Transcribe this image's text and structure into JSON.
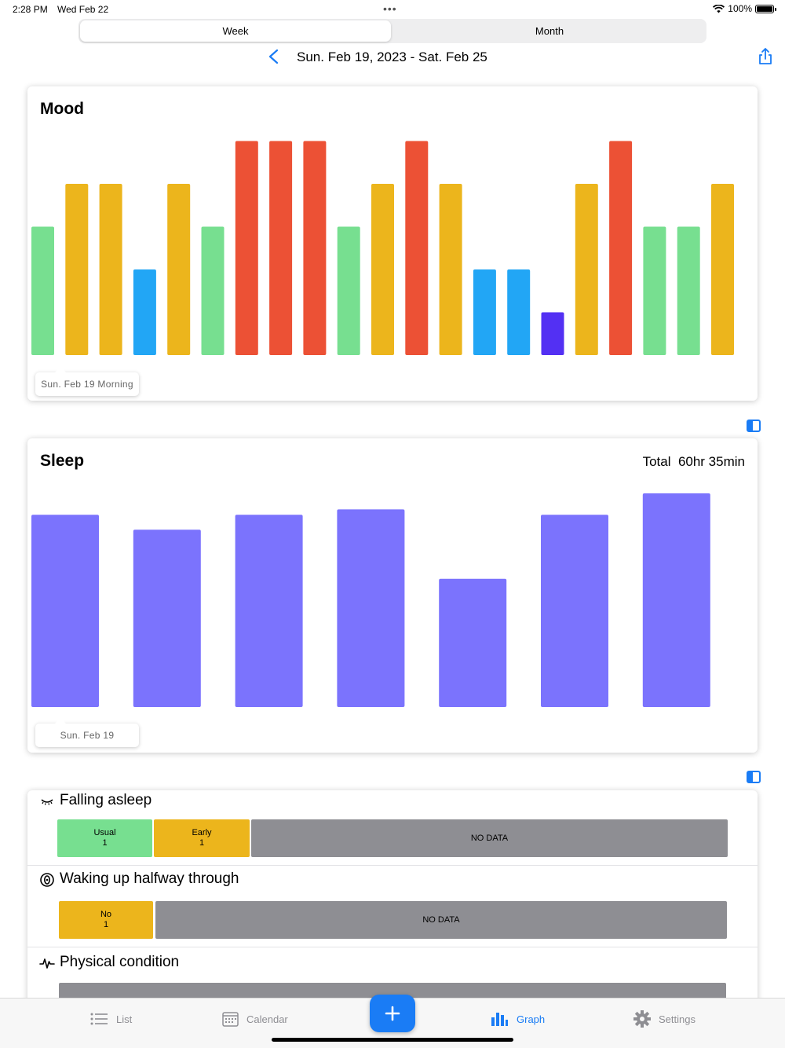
{
  "status_bar": {
    "time": "2:28 PM",
    "date": "Wed Feb 22",
    "battery": "100%"
  },
  "segmented_control": {
    "options": [
      "Week",
      "Month"
    ],
    "selected": "Week"
  },
  "date_nav": {
    "range": "Sun. Feb 19, 2023 - Sat. Feb 25"
  },
  "mood": {
    "title": "Mood",
    "tooltip": "Sun. Feb 19 Morning",
    "colors": {
      "5": "#ec5135",
      "4": "#ecb51c",
      "3": "#77df90",
      "2": "#22a6f5",
      "1": "#5330f3"
    }
  },
  "sleep": {
    "title": "Sleep",
    "total_label": "Total",
    "total_value": "60hr 35min",
    "tooltip": "Sun. Feb 19",
    "color": "#7b73fd"
  },
  "chart_data": [
    {
      "type": "bar",
      "title": "Mood",
      "levels": 5,
      "values": [
        3,
        4,
        4,
        2,
        4,
        3,
        5,
        5,
        5,
        3,
        4,
        5,
        4,
        2,
        2,
        1,
        4,
        5,
        3,
        3,
        4
      ],
      "ylim": [
        0,
        5
      ]
    },
    {
      "type": "bar",
      "title": "Sleep",
      "values": [
        9.0,
        8.3,
        9.0,
        9.25,
        6.0,
        9.0,
        10.0
      ],
      "ylim": [
        0,
        10
      ]
    }
  ],
  "falling_asleep": {
    "title": "Falling asleep",
    "segments": [
      {
        "label": "Usual",
        "count": "1",
        "color": "#77df90"
      },
      {
        "label": "Early",
        "count": "1",
        "color": "#ecb51c"
      },
      {
        "label": "NO DATA",
        "count": "",
        "color": "#8e8e93"
      }
    ]
  },
  "waking_up": {
    "title": "Waking up halfway through",
    "segments": [
      {
        "label": "No",
        "count": "1",
        "color": "#ecb51c"
      },
      {
        "label": "NO DATA",
        "count": "",
        "color": "#8e8e93"
      }
    ]
  },
  "physical_condition": {
    "title": "Physical condition",
    "bar_color": "#8e8e93"
  },
  "tabbar": {
    "items": [
      {
        "label": "List",
        "icon": "list-icon"
      },
      {
        "label": "Calendar",
        "icon": "calendar-icon"
      },
      {
        "label": "Graph",
        "icon": "graph-icon",
        "active": true
      },
      {
        "label": "Settings",
        "icon": "gear-icon"
      }
    ],
    "add_icon": "plus-icon",
    "accent": "#1a7cf5"
  }
}
